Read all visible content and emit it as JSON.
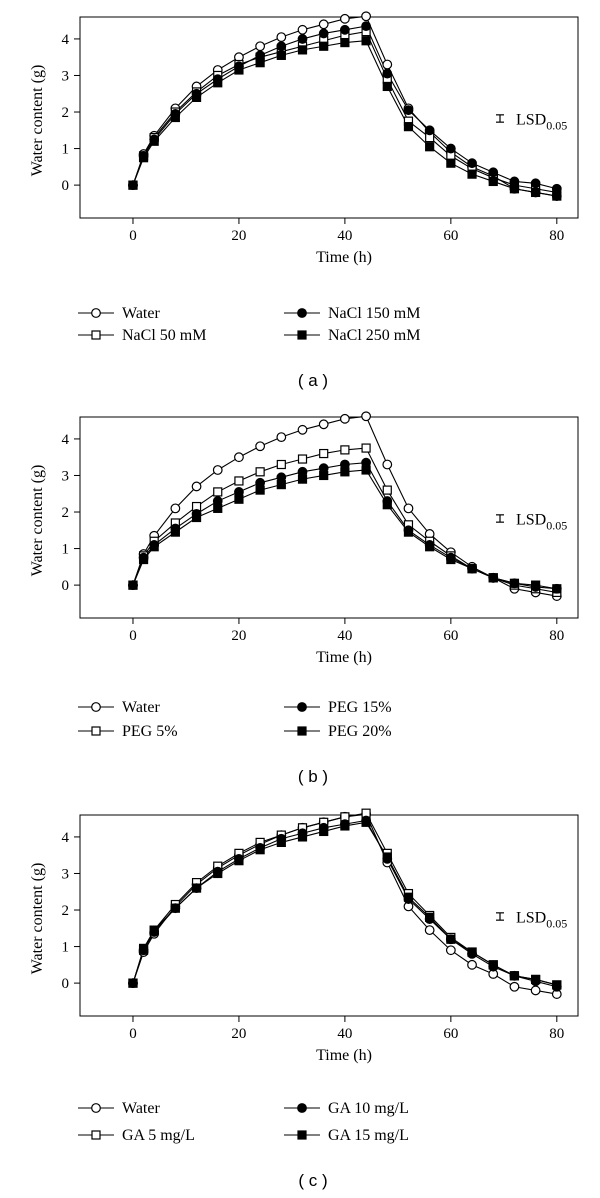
{
  "chart_data": [
    {
      "type": "line",
      "caption": "( a )",
      "xlabel": "Time (h)",
      "ylabel": "Water content (g)",
      "xlim": [
        -10,
        84
      ],
      "ylim": [
        -0.9,
        4.6
      ],
      "xticks": [
        0,
        20,
        40,
        60,
        80
      ],
      "yticks": [
        0,
        1,
        2,
        3,
        4
      ],
      "grid": false,
      "legend_position": "bottom",
      "lsd": {
        "label": "LSD",
        "subscript": "0.05",
        "value": 0.2
      },
      "x": [
        0,
        2,
        4,
        8,
        12,
        16,
        20,
        24,
        28,
        32,
        36,
        40,
        44,
        48,
        52,
        56,
        60,
        64,
        68,
        72,
        76,
        80
      ],
      "series": [
        {
          "name": "Water",
          "marker": "circle-open",
          "values": [
            0,
            0.85,
            1.35,
            2.1,
            2.7,
            3.15,
            3.5,
            3.8,
            4.05,
            4.25,
            4.4,
            4.55,
            4.62,
            3.3,
            2.1,
            1.45,
            0.9,
            0.5,
            0.25,
            -0.1,
            -0.2,
            -0.3
          ]
        },
        {
          "name": "NaCl 50 mM",
          "marker": "square-open",
          "values": [
            0,
            0.8,
            1.3,
            2.0,
            2.55,
            3.0,
            3.3,
            3.5,
            3.65,
            3.8,
            3.95,
            4.1,
            4.2,
            2.9,
            1.75,
            1.3,
            0.8,
            0.45,
            0.2,
            0.0,
            -0.1,
            -0.2
          ]
        },
        {
          "name": "NaCl 150 mM",
          "marker": "circle-filled",
          "values": [
            0,
            0.8,
            1.25,
            1.95,
            2.5,
            2.9,
            3.25,
            3.55,
            3.8,
            4.0,
            4.15,
            4.25,
            4.35,
            3.05,
            2.05,
            1.5,
            1.0,
            0.6,
            0.35,
            0.1,
            0.05,
            -0.1
          ]
        },
        {
          "name": "NaCl 250 mM",
          "marker": "square-filled",
          "values": [
            0,
            0.75,
            1.2,
            1.85,
            2.4,
            2.8,
            3.15,
            3.35,
            3.55,
            3.7,
            3.8,
            3.9,
            3.95,
            2.7,
            1.6,
            1.05,
            0.6,
            0.3,
            0.1,
            -0.1,
            -0.2,
            -0.3
          ]
        }
      ]
    },
    {
      "type": "line",
      "caption": "( b )",
      "xlabel": "Time (h)",
      "ylabel": "Water content (g)",
      "xlim": [
        -10,
        84
      ],
      "ylim": [
        -0.9,
        4.6
      ],
      "xticks": [
        0,
        20,
        40,
        60,
        80
      ],
      "yticks": [
        0,
        1,
        2,
        3,
        4
      ],
      "grid": false,
      "legend_position": "bottom",
      "lsd": {
        "label": "LSD",
        "subscript": "0.05",
        "value": 0.2
      },
      "x": [
        0,
        2,
        4,
        8,
        12,
        16,
        20,
        24,
        28,
        32,
        36,
        40,
        44,
        48,
        52,
        56,
        60,
        64,
        68,
        72,
        76,
        80
      ],
      "series": [
        {
          "name": "Water",
          "marker": "circle-open",
          "values": [
            0,
            0.85,
            1.35,
            2.1,
            2.7,
            3.15,
            3.5,
            3.8,
            4.05,
            4.25,
            4.4,
            4.55,
            4.62,
            3.3,
            2.1,
            1.4,
            0.9,
            0.5,
            0.2,
            -0.1,
            -0.2,
            -0.3
          ]
        },
        {
          "name": "PEG 5%",
          "marker": "square-open",
          "values": [
            0,
            0.8,
            1.2,
            1.7,
            2.15,
            2.55,
            2.85,
            3.1,
            3.3,
            3.45,
            3.6,
            3.7,
            3.75,
            2.6,
            1.65,
            1.2,
            0.8,
            0.45,
            0.2,
            0.0,
            -0.1,
            -0.2
          ]
        },
        {
          "name": "PEG 15%",
          "marker": "circle-filled",
          "values": [
            0,
            0.75,
            1.1,
            1.55,
            1.95,
            2.3,
            2.55,
            2.8,
            2.95,
            3.1,
            3.2,
            3.3,
            3.35,
            2.3,
            1.5,
            1.1,
            0.75,
            0.45,
            0.2,
            0.05,
            -0.05,
            -0.1
          ]
        },
        {
          "name": "PEG 20%",
          "marker": "square-filled",
          "values": [
            0,
            0.7,
            1.05,
            1.45,
            1.85,
            2.1,
            2.35,
            2.6,
            2.75,
            2.9,
            3.0,
            3.1,
            3.15,
            2.2,
            1.45,
            1.05,
            0.7,
            0.45,
            0.2,
            0.05,
            0.0,
            -0.1
          ]
        }
      ]
    },
    {
      "type": "line",
      "caption": "( c )",
      "xlabel": "Time (h)",
      "ylabel": "Water content (g)",
      "xlim": [
        -10,
        84
      ],
      "ylim": [
        -0.9,
        4.6
      ],
      "xticks": [
        0,
        20,
        40,
        60,
        80
      ],
      "yticks": [
        0,
        1,
        2,
        3,
        4
      ],
      "grid": false,
      "legend_position": "bottom",
      "lsd": {
        "label": "LSD",
        "subscript": "0.05",
        "value": 0.2
      },
      "x": [
        0,
        2,
        4,
        8,
        12,
        16,
        20,
        24,
        28,
        32,
        36,
        40,
        44,
        48,
        52,
        56,
        60,
        64,
        68,
        72,
        76,
        80
      ],
      "series": [
        {
          "name": "Water",
          "marker": "circle-open",
          "values": [
            0,
            0.85,
            1.35,
            2.1,
            2.7,
            3.15,
            3.5,
            3.8,
            4.05,
            4.25,
            4.4,
            4.55,
            4.62,
            3.3,
            2.1,
            1.45,
            0.9,
            0.5,
            0.25,
            -0.1,
            -0.2,
            -0.3
          ]
        },
        {
          "name": "GA 5 mg/L",
          "marker": "square-open",
          "values": [
            0,
            0.9,
            1.45,
            2.15,
            2.75,
            3.2,
            3.55,
            3.85,
            4.05,
            4.25,
            4.4,
            4.55,
            4.65,
            3.55,
            2.45,
            1.85,
            1.25,
            0.85,
            0.5,
            0.2,
            0.1,
            -0.05
          ]
        },
        {
          "name": "GA 10 mg/L",
          "marker": "circle-filled",
          "values": [
            0,
            0.9,
            1.4,
            2.05,
            2.6,
            3.05,
            3.4,
            3.7,
            3.95,
            4.1,
            4.25,
            4.35,
            4.45,
            3.4,
            2.3,
            1.75,
            1.2,
            0.8,
            0.45,
            0.2,
            0.05,
            -0.1
          ]
        },
        {
          "name": "GA 15 mg/L",
          "marker": "square-filled",
          "values": [
            0,
            0.95,
            1.45,
            2.05,
            2.6,
            3.0,
            3.35,
            3.65,
            3.85,
            4.0,
            4.15,
            4.3,
            4.4,
            3.45,
            2.35,
            1.8,
            1.2,
            0.85,
            0.5,
            0.2,
            0.1,
            -0.05
          ]
        }
      ]
    }
  ]
}
